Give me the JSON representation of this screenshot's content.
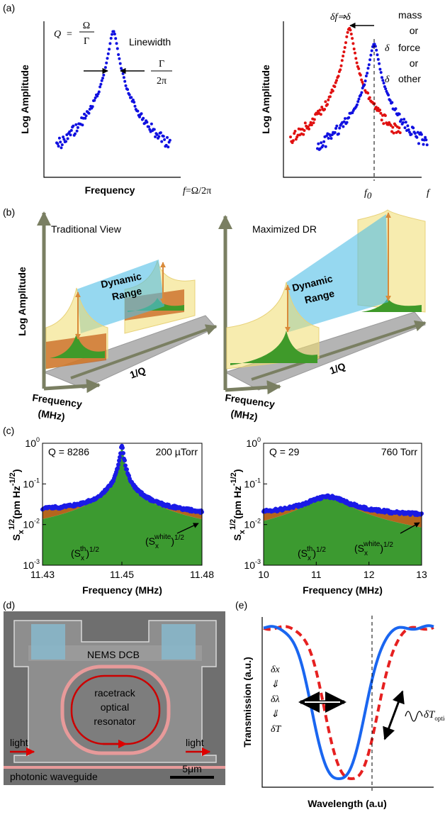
{
  "panel_a": {
    "label": "(a)",
    "left": {
      "y_label": "Log Amplitude",
      "x_label": "Frequency",
      "q_symbol": "Q",
      "q_equals": "=",
      "q_numerator": "Ω",
      "q_denominator": "Γ",
      "linewidth_label": "Linewidth",
      "width_numerator": "Γ",
      "width_denominator": "2π",
      "f_symbol": "f",
      "f_definition": "=Ω/2π"
    },
    "right": {
      "y_label": "Log Amplitude",
      "shift_text": "δf⇒δ",
      "mass": "mass",
      "or_1": "or",
      "delta_force": "δ",
      "force": "force",
      "or_2": "or",
      "delta_other": "δ",
      "other": "other",
      "f0_symbol": "f",
      "f0_subscript": "0",
      "f_symbol": "f"
    }
  },
  "panel_b": {
    "label": "(b)",
    "left": {
      "title": "Traditional View",
      "y_label": "Log Amplitude",
      "range_lines": [
        "Dynamic",
        "Range"
      ],
      "frequency_lines": [
        "Frequency",
        "(MHz)"
      ],
      "q_axis": "1/Q"
    },
    "right": {
      "title": "Maximized DR",
      "range_lines": [
        "Dynamic",
        "Range"
      ],
      "frequency_lines": [
        "Frequency",
        "(MHz)"
      ],
      "q_axis": "1/Q"
    }
  },
  "panel_c": {
    "label": "(c)",
    "left": {
      "y_label": {
        "main": "S",
        "sub": "x",
        "sup": "1/2",
        "unit": "(pm Hz",
        "unit_sup": "-1/2",
        "close": ")"
      },
      "q_text": "Q = 8286",
      "pressure": "200 µTorr",
      "y_ticks": [
        {
          "base": 10,
          "exp": 0
        },
        {
          "base": 10,
          "exp": -1
        },
        {
          "base": 10,
          "exp": -2
        },
        {
          "base": 10,
          "exp": -3
        }
      ],
      "x_ticks": [
        11.43,
        11.45,
        11.48
      ],
      "x_label": "Frequency (MHz)",
      "thermal_label": {
        "open": "(S",
        "sub": "x",
        "sup": "th",
        "close": ")",
        "exp": "1/2"
      },
      "white_label": {
        "open": "(S",
        "sub": "x",
        "sup": "white",
        "close": ")",
        "exp": "1/2"
      }
    },
    "right": {
      "y_label": {
        "main": "S",
        "sub": "x",
        "sup": "1/2",
        "unit": "(pm Hz",
        "unit_sup": "-1/2",
        "close": ")"
      },
      "q_text": "Q = 29",
      "pressure": "760 Torr",
      "y_ticks": [
        {
          "base": 10,
          "exp": 0
        },
        {
          "base": 10,
          "exp": -1
        },
        {
          "base": 10,
          "exp": -2
        },
        {
          "base": 10,
          "exp": -3
        }
      ],
      "x_ticks": [
        10,
        11,
        12,
        13
      ],
      "x_label": "Frequency (MHz)",
      "thermal_label": {
        "open": "(S",
        "sub": "x",
        "sup": "th",
        "close": ")",
        "exp": "1/2"
      },
      "white_label": {
        "open": "(S",
        "sub": "x",
        "sup": "white",
        "close": ")",
        "exp": "1/2"
      }
    }
  },
  "panel_d": {
    "label": "(d)",
    "dcb": "NEMS DCB",
    "resonator_lines": [
      "racetrack",
      "optical",
      "resonator"
    ],
    "light_left": "light",
    "light_right": "light",
    "waveguide": "photonic waveguide",
    "scale_bar": "5μm"
  },
  "panel_e": {
    "label": "(e)",
    "y_label": "Transmission (a.u.)",
    "x_label": "Wavelength (a.u)",
    "chain": [
      "δx",
      "⇓",
      "δλ",
      "⇓",
      "δT"
    ],
    "signal": "δT",
    "signal_sub": "optical"
  }
}
